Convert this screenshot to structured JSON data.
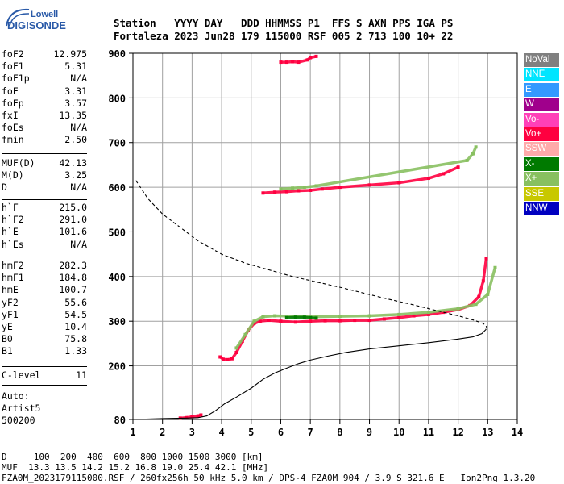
{
  "logo": {
    "line1": "Lowell",
    "line2": "DIGISONDE"
  },
  "header": {
    "line1": "Station   YYYY DAY   DDD HHMMSS P1  FFS S AXN PPS IGA PS",
    "line2": "Fortaleza 2023 Jun28 179 115000 RSF 005 2 713 100 10+ 22"
  },
  "params": {
    "group1": [
      {
        "label": "foF2",
        "value": "12.975"
      },
      {
        "label": "foF1",
        "value": "5.31"
      },
      {
        "label": "foF1p",
        "value": "N/A"
      },
      {
        "label": "foE",
        "value": "3.31"
      },
      {
        "label": "foEp",
        "value": "3.57"
      },
      {
        "label": "fxI",
        "value": "13.35"
      },
      {
        "label": "foEs",
        "value": "N/A"
      },
      {
        "label": "fmin",
        "value": "2.50"
      }
    ],
    "group2": [
      {
        "label": "MUF(D)",
        "value": "42.13"
      },
      {
        "label": "M(D)",
        "value": "3.25"
      },
      {
        "label": "D",
        "value": "N/A"
      }
    ],
    "group3": [
      {
        "label": "h`F",
        "value": "215.0"
      },
      {
        "label": "h`F2",
        "value": "291.0"
      },
      {
        "label": "h`E",
        "value": "101.6"
      },
      {
        "label": "h`Es",
        "value": "N/A"
      }
    ],
    "group4": [
      {
        "label": "hmF2",
        "value": "282.3"
      },
      {
        "label": "hmF1",
        "value": "184.8"
      },
      {
        "label": "hmE",
        "value": "100.7"
      },
      {
        "label": "yF2",
        "value": "55.6"
      },
      {
        "label": "yF1",
        "value": "54.5"
      },
      {
        "label": "yE",
        "value": "10.4"
      },
      {
        "label": "B0",
        "value": "75.8"
      },
      {
        "label": "B1",
        "value": "1.33"
      }
    ],
    "group5": [
      {
        "label": "C-level",
        "value": "11"
      }
    ],
    "auto": [
      "Auto:",
      "Artist5",
      "500200"
    ]
  },
  "legend": [
    {
      "label": "NoVal",
      "color": "#808080"
    },
    {
      "label": "NNE",
      "color": "#00e5ff"
    },
    {
      "label": "E",
      "color": "#3399ff"
    },
    {
      "label": "W",
      "color": "#a0008c"
    },
    {
      "label": "Vo-",
      "color": "#ff40b8"
    },
    {
      "label": "Vo+",
      "color": "#ff0040"
    },
    {
      "label": "SSW",
      "color": "#ffaaaa"
    },
    {
      "label": "X-",
      "color": "#007a00"
    },
    {
      "label": "X+",
      "color": "#88c060"
    },
    {
      "label": "SSE",
      "color": "#c8c800"
    },
    {
      "label": "NNW",
      "color": "#0000c0"
    }
  ],
  "chart_data": {
    "type": "scatter",
    "xlim": [
      1,
      14
    ],
    "ylim": [
      80,
      900
    ],
    "x_ticks": [
      "1",
      "2",
      "3",
      "4",
      "5",
      "6",
      "7",
      "8",
      "9",
      "10",
      "11",
      "12",
      "13",
      "14"
    ],
    "y_ticks": [
      "80",
      "200",
      "300",
      "400",
      "500",
      "600",
      "700",
      "800",
      "900"
    ],
    "grid": true,
    "series": [
      {
        "color": "#ff0040",
        "style": "trace",
        "x": [
          2.6,
          2.8,
          3.0,
          3.2,
          3.3
        ],
        "y": [
          83,
          84,
          86,
          88,
          90
        ]
      },
      {
        "color": "#ff0040",
        "style": "trace",
        "x": [
          3.95,
          4.05,
          4.2,
          4.35,
          4.5,
          4.7,
          4.9,
          5.1,
          5.3,
          5.6,
          6.0,
          6.5,
          7.0,
          7.5,
          8.0,
          8.5,
          9.0,
          9.5,
          10.0,
          10.5,
          11.0,
          11.5,
          12.0,
          12.4,
          12.7,
          12.85,
          12.95
        ],
        "y": [
          220,
          215,
          214,
          216,
          230,
          255,
          280,
          295,
          300,
          302,
          300,
          298,
          300,
          301,
          301,
          302,
          302,
          305,
          308,
          312,
          315,
          320,
          326,
          335,
          355,
          390,
          440
        ]
      },
      {
        "color": "#88c060",
        "style": "trace",
        "x": [
          4.5,
          4.8,
          5.1,
          5.4,
          5.8,
          6.5,
          7.2,
          8.0,
          9.0,
          10.0,
          11.0,
          12.0,
          12.6,
          13.0,
          13.25
        ],
        "y": [
          240,
          270,
          300,
          310,
          312,
          311,
          310,
          311,
          312,
          315,
          320,
          328,
          338,
          360,
          420
        ]
      },
      {
        "color": "#007a00",
        "style": "trace",
        "x": [
          6.2,
          6.5,
          6.8,
          7.0,
          7.2
        ],
        "y": [
          308,
          309,
          309,
          308,
          307
        ]
      },
      {
        "color": "#ff0040",
        "style": "trace",
        "x": [
          5.4,
          5.8,
          6.2,
          6.6,
          7.0,
          7.4,
          8.0,
          9.0,
          10.0,
          11.0,
          11.5,
          12.0
        ],
        "y": [
          587,
          589,
          590,
          592,
          593,
          596,
          600,
          605,
          610,
          620,
          630,
          645
        ]
      },
      {
        "color": "#88c060",
        "style": "trace",
        "x": [
          6.0,
          6.4,
          6.8,
          7.2,
          12.3,
          12.5,
          12.6
        ],
        "y": [
          596,
          598,
          600,
          603,
          660,
          675,
          690
        ]
      },
      {
        "color": "#ff0040",
        "style": "trace",
        "x": [
          6.0,
          6.2,
          6.4,
          6.6,
          6.9,
          7.0,
          7.2
        ],
        "y": [
          880,
          880,
          881,
          880,
          885,
          890,
          893
        ]
      },
      {
        "color": "#000000",
        "style": "solid",
        "x": [
          1.0,
          2.0,
          2.8,
          3.2,
          3.5,
          3.8,
          4.1,
          4.5,
          5.0,
          5.4,
          5.8,
          6.2,
          6.6,
          7.0,
          7.6,
          8.2,
          9.0,
          10.0,
          11.0,
          12.0,
          12.5,
          12.8,
          12.95
        ],
        "y": [
          80,
          82,
          83,
          84,
          88,
          100,
          115,
          130,
          150,
          170,
          184,
          195,
          205,
          213,
          222,
          230,
          238,
          245,
          252,
          260,
          265,
          272,
          282
        ]
      },
      {
        "color": "#000000",
        "style": "dashed",
        "x": [
          1.1,
          1.5,
          2.0,
          2.6,
          3.2,
          4.0,
          4.8,
          5.6,
          6.4,
          7.2,
          8.0,
          8.8,
          9.6,
          10.4,
          11.2,
          12.0,
          12.5,
          12.85,
          12.97,
          12.9
        ],
        "y": [
          615,
          575,
          540,
          510,
          480,
          450,
          430,
          415,
          400,
          388,
          376,
          363,
          350,
          338,
          325,
          312,
          303,
          295,
          287,
          282
        ]
      }
    ]
  },
  "footer": {
    "line1": "D     100  200  400  600  800 1000 1500 3000 [km]",
    "line2": "MUF  13.3 13.5 14.2 15.2 16.8 19.0 25.4 42.1 [MHz]",
    "line3": "FZA0M_2023179115000.RSF / 260fx256h 50 kHz 5.0 km / DPS-4 FZA0M 904 / 3.9 S 321.6 E   Ion2Png 1.3.20"
  }
}
